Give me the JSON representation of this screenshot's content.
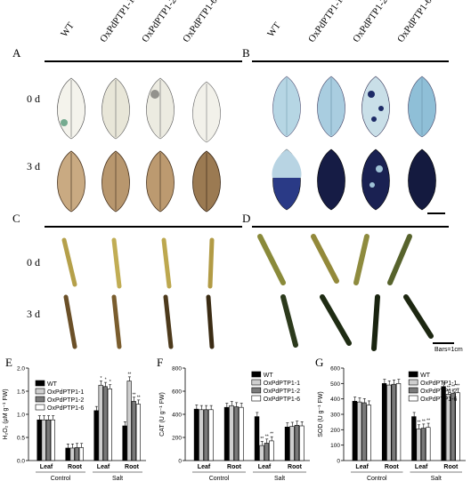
{
  "genotypes": [
    "WT",
    "OxPdPTP1-1",
    "OxPdPTP1-2",
    "OxPdPTP1-6"
  ],
  "panels": {
    "A": "A",
    "B": "B",
    "C": "C",
    "D": "D",
    "E": "E",
    "F": "F",
    "G": "G"
  },
  "days": {
    "d0": "0 d",
    "d3": "3 d"
  },
  "scale_bar_label": "Bars=1cm",
  "colors": {
    "dab_leaf_0d": "#f1efe6",
    "dab_leaf_3d": "#c3a27a",
    "nbt_leaf_0d": "#a8ccdd",
    "nbt_leaf_3d": "#1d2457",
    "root_0d": "#bba64a",
    "root_3d": "#6e5227",
    "dark_root_3d": "#1f2c17",
    "series_WT": "#000000",
    "series_1": "#cfcfcf",
    "series_2": "#7a7a7a",
    "series_6": "#ffffff"
  },
  "chart_data": [
    {
      "type": "bar",
      "panel": "E",
      "ylabel": "H₂O₂ (μM g⁻¹ FW)",
      "ylim": [
        0,
        2.0
      ],
      "yticks": [
        "0.0",
        "0.5",
        "1.0",
        "1.5",
        "2.0"
      ],
      "categories": [
        "Leaf",
        "Root",
        "Leaf",
        "Root"
      ],
      "groups": [
        "Control",
        "Salt"
      ],
      "series": [
        {
          "name": "WT",
          "values": [
            0.88,
            0.27,
            1.08,
            0.75
          ]
        },
        {
          "name": "OxPdPTP1-1",
          "values": [
            0.88,
            0.27,
            1.63,
            1.72
          ]
        },
        {
          "name": "OxPdPTP1-2",
          "values": [
            0.88,
            0.28,
            1.6,
            1.28
          ]
        },
        {
          "name": "OxPdPTP1-6",
          "values": [
            0.88,
            0.28,
            1.55,
            1.22
          ]
        }
      ],
      "sig": [
        [
          "",
          "",
          "",
          ""
        ],
        [
          "",
          "",
          "*",
          "**"
        ],
        [
          "",
          "",
          "*",
          "**"
        ],
        [
          "",
          "",
          "*",
          "**"
        ]
      ],
      "legend": "top-left"
    },
    {
      "type": "bar",
      "panel": "F",
      "ylabel": "CAT (U g⁻¹ FW)",
      "ylim": [
        0,
        800
      ],
      "yticks": [
        "0",
        "200",
        "400",
        "600",
        "800"
      ],
      "categories": [
        "Leaf",
        "Root",
        "Leaf",
        "Root"
      ],
      "groups": [
        "Control",
        "Salt"
      ],
      "series": [
        {
          "name": "WT",
          "values": [
            445,
            460,
            380,
            290
          ]
        },
        {
          "name": "OxPdPTP1-1",
          "values": [
            440,
            475,
            130,
            295
          ]
        },
        {
          "name": "OxPdPTP1-2",
          "values": [
            440,
            465,
            150,
            305
          ]
        },
        {
          "name": "OxPdPTP1-6",
          "values": [
            440,
            460,
            170,
            300
          ]
        }
      ],
      "sig": [
        [
          "",
          "",
          "",
          ""
        ],
        [
          "",
          "",
          "**",
          ""
        ],
        [
          "",
          "",
          "**",
          ""
        ],
        [
          "",
          "",
          "**",
          ""
        ]
      ],
      "legend": "top-right"
    },
    {
      "type": "bar",
      "panel": "G",
      "ylabel": "SOD (U g⁻¹ FW)",
      "ylim": [
        0,
        600
      ],
      "yticks": [
        "0",
        "100",
        "200",
        "300",
        "400",
        "500",
        "600"
      ],
      "categories": [
        "Leaf",
        "Root",
        "Leaf",
        "Root"
      ],
      "groups": [
        "Control",
        "Salt"
      ],
      "series": [
        {
          "name": "WT",
          "values": [
            385,
            500,
            285,
            480
          ]
        },
        {
          "name": "OxPdPTP1-1",
          "values": [
            380,
            490,
            205,
            430
          ]
        },
        {
          "name": "OxPdPTP1-2",
          "values": [
            375,
            495,
            210,
            435
          ]
        },
        {
          "name": "OxPdPTP1-6",
          "values": [
            360,
            500,
            215,
            440
          ]
        }
      ],
      "sig": [
        [
          "",
          "",
          "",
          ""
        ],
        [
          "",
          "",
          "**",
          "**"
        ],
        [
          "",
          "",
          "**",
          "**"
        ],
        [
          "",
          "",
          "**",
          "**"
        ]
      ],
      "legend": "top-right"
    }
  ]
}
